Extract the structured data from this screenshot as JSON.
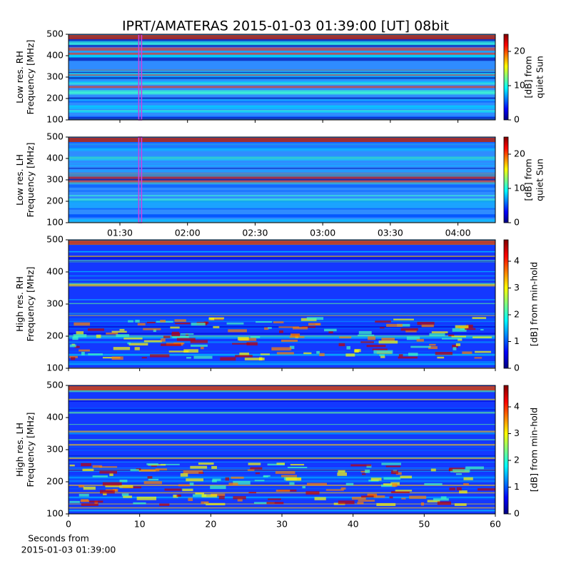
{
  "title": "IPRT/AMATERAS 2015-01-03 01:39:00 [UT]   08bit",
  "chart_data": [
    {
      "type": "heatmap",
      "ylabel": [
        "Low res. RH",
        "Frequency [MHz]"
      ],
      "xlim": [
        67.2,
        256.6
      ],
      "ylim": [
        100,
        500
      ],
      "yticks": [
        100,
        200,
        300,
        400,
        500
      ],
      "highlight_x": 99,
      "highlight_color": "#d040e0",
      "clim": [
        0,
        25
      ],
      "cticks": [
        0,
        10,
        20
      ],
      "clabel": [
        "[dB] from",
        "quiet Sun"
      ]
    },
    {
      "type": "heatmap",
      "ylabel": [
        "Low res. LH",
        "Frequency [MHz]"
      ],
      "xlim": [
        67.2,
        256.6
      ],
      "ylim": [
        100,
        500
      ],
      "yticks": [
        100,
        200,
        300,
        400,
        500
      ],
      "xticks": [
        {
          "value": 90,
          "label": "01:30"
        },
        {
          "value": 120,
          "label": "02:00"
        },
        {
          "value": 150,
          "label": "02:30"
        },
        {
          "value": 180,
          "label": "03:00"
        },
        {
          "value": 210,
          "label": "03:30"
        },
        {
          "value": 240,
          "label": "04:00"
        }
      ],
      "highlight_x": 99,
      "highlight_color": "#d040e0",
      "clim": [
        0,
        25
      ],
      "cticks": [
        0,
        10,
        20
      ],
      "clabel": [
        "[dB] from",
        "quiet Sun"
      ]
    },
    {
      "type": "heatmap",
      "ylabel": [
        "High res. RH",
        "Frequency [MHz]"
      ],
      "xlim": [
        0,
        60
      ],
      "ylim": [
        100,
        500
      ],
      "yticks": [
        100,
        200,
        300,
        400,
        500
      ],
      "clim": [
        0,
        4.8
      ],
      "cticks": [
        0,
        1,
        2,
        3,
        4
      ],
      "clabel": [
        "[dB] from min-hold"
      ]
    },
    {
      "type": "heatmap",
      "ylabel": [
        "High res. LH",
        "Frequency [MHz]"
      ],
      "xlim": [
        0,
        60
      ],
      "ylim": [
        100,
        500
      ],
      "yticks": [
        100,
        200,
        300,
        400,
        500
      ],
      "xticks": [
        0,
        10,
        20,
        30,
        40,
        50,
        60
      ],
      "xlabel": [
        "Seconds from",
        "2015-01-03 01:39:00"
      ],
      "clim": [
        0,
        4.8
      ],
      "cticks": [
        0,
        1,
        2,
        3,
        4
      ],
      "clabel": [
        "[dB] from min-hold"
      ]
    }
  ]
}
